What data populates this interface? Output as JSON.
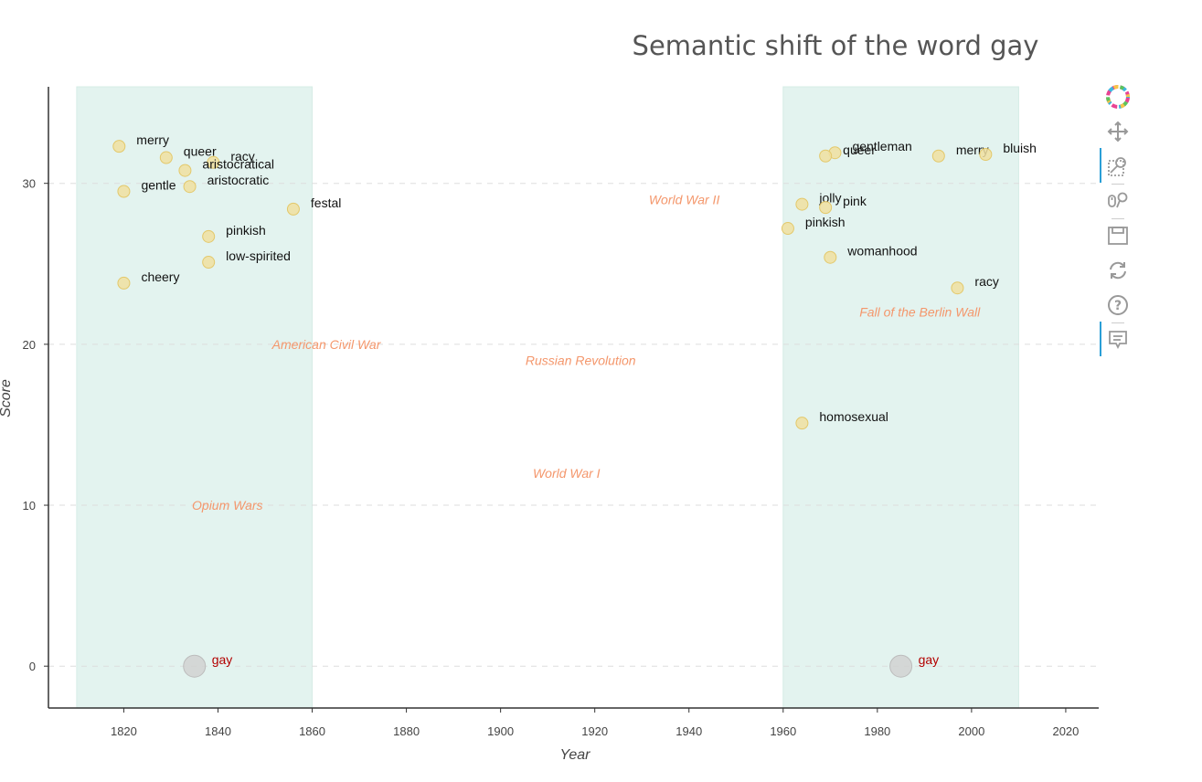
{
  "chart_data": {
    "type": "scatter",
    "title": "Semantic shift of the word gay",
    "xlabel": "Year",
    "ylabel": "Score",
    "xlim": [
      1804,
      2027
    ],
    "ylim": [
      -2.6,
      36
    ],
    "xticks": [
      1820,
      1840,
      1860,
      1880,
      1900,
      1920,
      1940,
      1960,
      1980,
      2000,
      2020
    ],
    "yticks": [
      0,
      10,
      20,
      30
    ],
    "grid": "horizontal dashed",
    "periods": [
      {
        "start": 1810,
        "end": 1860
      },
      {
        "start": 1960,
        "end": 2010
      }
    ],
    "center_points": [
      {
        "label": "gay",
        "x": 1835,
        "y": 0
      },
      {
        "label": "gay",
        "x": 1985,
        "y": 0
      }
    ],
    "points": [
      {
        "label": "merry",
        "x": 1819,
        "y": 32.3
      },
      {
        "label": "queer",
        "x": 1829,
        "y": 31.6
      },
      {
        "label": "racy",
        "x": 1839,
        "y": 31.3
      },
      {
        "label": "aristocratical",
        "x": 1833,
        "y": 30.8
      },
      {
        "label": "aristocratic",
        "x": 1834,
        "y": 29.8
      },
      {
        "label": "gentle",
        "x": 1820,
        "y": 29.5
      },
      {
        "label": "festal",
        "x": 1856,
        "y": 28.4
      },
      {
        "label": "pinkish",
        "x": 1838,
        "y": 26.7
      },
      {
        "label": "low-spirited",
        "x": 1838,
        "y": 25.1
      },
      {
        "label": "cheery",
        "x": 1820,
        "y": 23.8
      },
      {
        "label": "gentleman",
        "x": 1971,
        "y": 31.9
      },
      {
        "label": "queer",
        "x": 1969,
        "y": 31.7
      },
      {
        "label": "merry",
        "x": 1993,
        "y": 31.7
      },
      {
        "label": "bluish",
        "x": 2003,
        "y": 31.8
      },
      {
        "label": "jolly",
        "x": 1964,
        "y": 28.7
      },
      {
        "label": "pink",
        "x": 1969,
        "y": 28.5
      },
      {
        "label": "pinkish",
        "x": 1961,
        "y": 27.2
      },
      {
        "label": "womanhood",
        "x": 1970,
        "y": 25.4
      },
      {
        "label": "racy",
        "x": 1997,
        "y": 23.5
      },
      {
        "label": "homosexual",
        "x": 1964,
        "y": 15.1
      }
    ],
    "events": [
      {
        "label": "American Civil War",
        "x": 1863,
        "y": 20
      },
      {
        "label": "Opium Wars",
        "x": 1842,
        "y": 10
      },
      {
        "label": "Russian Revolution",
        "x": 1917,
        "y": 19
      },
      {
        "label": "World War I",
        "x": 1914,
        "y": 12
      },
      {
        "label": "World War II",
        "x": 1939,
        "y": 29
      },
      {
        "label": "Fall of the Berlin Wall",
        "x": 1989,
        "y": 22
      }
    ],
    "colors": {
      "point_fill": "#f0dfa0",
      "point_stroke": "#e3c86a",
      "center_fill": "#cfcfcf",
      "center_label": "#b30000",
      "event_label": "#f4976c",
      "period_fill": "#e3f3ef"
    }
  },
  "toolbar": {
    "items": [
      {
        "name": "logo-icon",
        "interactable": true
      },
      {
        "name": "pan-icon",
        "interactable": true
      },
      {
        "name": "box-zoom-icon",
        "interactable": true,
        "active": true
      },
      {
        "name": "wheel-zoom-icon",
        "interactable": true
      },
      {
        "name": "save-icon",
        "interactable": true
      },
      {
        "name": "reset-icon",
        "interactable": true
      },
      {
        "name": "help-icon",
        "interactable": true
      },
      {
        "name": "hover-icon",
        "interactable": true,
        "active": true
      }
    ]
  }
}
